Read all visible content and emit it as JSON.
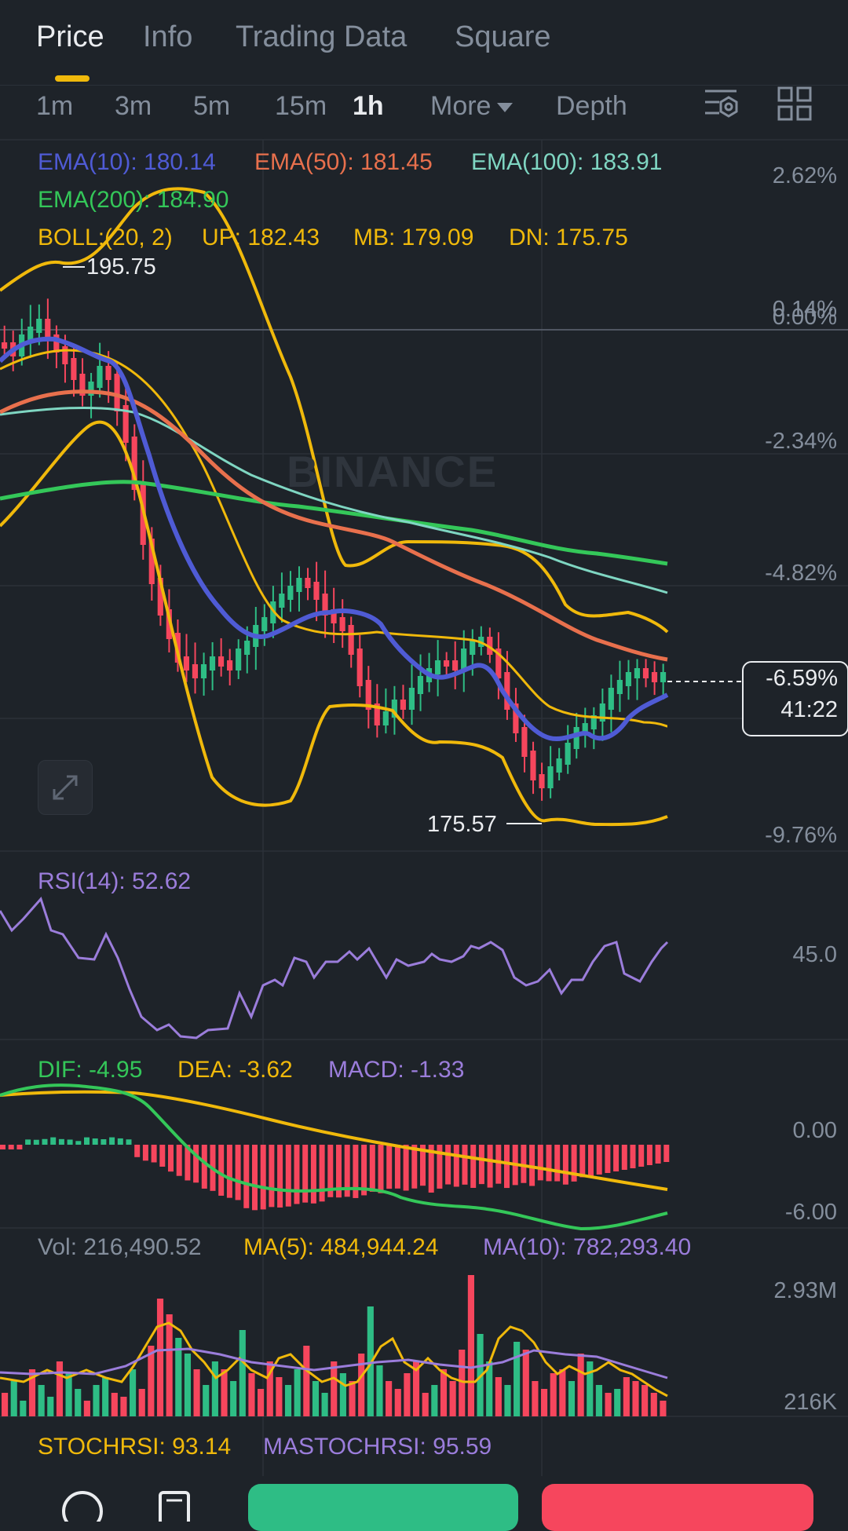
{
  "tabs": [
    "Price",
    "Info",
    "Trading Data",
    "Square"
  ],
  "intervals": {
    "items": [
      "1m",
      "3m",
      "5m",
      "15m",
      "1h"
    ],
    "active": "1h",
    "more_label": "More",
    "depth_label": "Depth"
  },
  "icons": {
    "indicator_settings": "chart-settings-icon",
    "layout": "grid-layout-icon",
    "expand": "expand-icon",
    "nav_left": "chat-icon",
    "nav_doc": "document-icon"
  },
  "colors": {
    "ema10": "#4f5bd5",
    "ema50": "#e8704d",
    "ema100": "#7fd6c2",
    "ema200": "#34c759",
    "boll": "#f0b90b",
    "rsi": "#9b7ddb",
    "dif": "#34c759",
    "dea": "#f0b90b",
    "up": "#2ebd85",
    "down": "#f6465d"
  },
  "main_chart": {
    "ema10": "EMA(10): 180.14",
    "ema50": "EMA(50): 181.45",
    "ema100": "EMA(100): 183.91",
    "ema200": "EMA(200): 184.90",
    "boll": "BOLL:(20, 2)",
    "boll_up": "UP: 182.43",
    "boll_mb": "MB: 179.09",
    "boll_dn": "DN: 175.75",
    "high_marker": "195.75",
    "low_marker": "175.57",
    "axis_labels": [
      "2.62%",
      "0.14%",
      "0.00%",
      "-2.34%",
      "-4.82%",
      "-9.76%"
    ],
    "current_change": "-6.59%",
    "countdown": "41:22",
    "watermark": "BINANCE"
  },
  "rsi": {
    "label": "RSI(14): 52.62",
    "axis_label": "45.0"
  },
  "macd": {
    "dif": "DIF: -4.95",
    "dea": "DEA: -3.62",
    "macd": "MACD: -1.33",
    "axis_labels": [
      "0.00",
      "-6.00"
    ]
  },
  "volume": {
    "vol": "Vol: 216,490.52",
    "ma5": "MA(5): 484,944.24",
    "ma10": "MA(10): 782,293.40",
    "axis_labels": [
      "2.93M",
      "216K"
    ]
  },
  "stochrsi": {
    "stochrsi": "STOCHRSI: 93.14",
    "mastochrsi": "MASTOCHRSI: 95.59"
  },
  "bottom_nav": {
    "buy_color": "#2ebd85",
    "sell_color": "#f6465d"
  }
}
